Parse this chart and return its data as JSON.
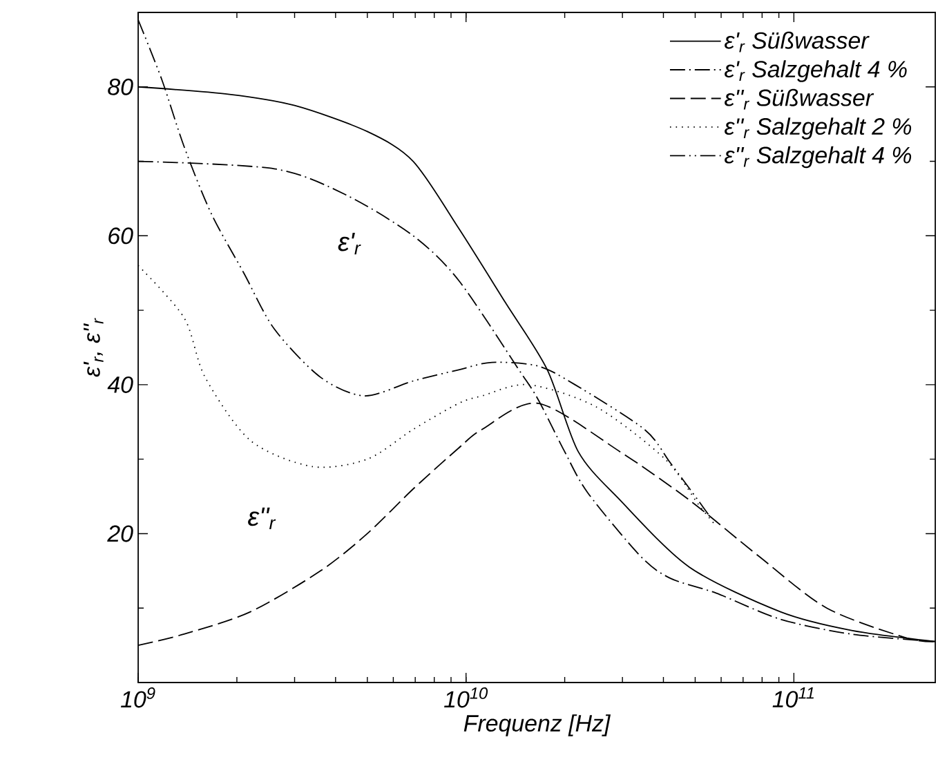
{
  "chart_data": {
    "type": "line",
    "xlabel": "Frequenz [Hz]",
    "ylabel": "ε'$_{r}$, ε''$_{r}$",
    "log": "x",
    "xlim": [
      1000000000.0,
      270000000000.0
    ],
    "xticks": [
      {
        "value": 1000000000.0,
        "label": "10$^{9}$"
      },
      {
        "value": 10000000000.0,
        "label": "10$^{10}$"
      },
      {
        "value": 100000000000.0,
        "label": "10$^{11}$"
      }
    ],
    "ylim": [
      0,
      90
    ],
    "yticks": [
      {
        "value": 10,
        "label": null
      },
      20,
      {
        "value": 30,
        "label": null
      },
      40,
      {
        "value": 50,
        "label": null
      },
      60,
      {
        "value": 70,
        "label": null
      },
      80
    ],
    "legend": "top right",
    "series": [
      {
        "name": "ε'$_{r}$ Süßwasser",
        "color": "#000000",
        "line_style": "solid",
        "x": [
          1000000000.0,
          1900000000.0,
          3000000000.0,
          5000000000.0,
          6900000000.0,
          9500000000.0,
          13200000000.0,
          17700000000.0,
          22000000000.0,
          29500000000.0,
          48000000000.0,
          91000000000.0,
          150000000000.0,
          270000000000.0
        ],
        "values": [
          80,
          79,
          77.5,
          74,
          70,
          61,
          51,
          42,
          31,
          24.5,
          15.5,
          9.5,
          7,
          5.5
        ]
      },
      {
        "name": "ε'$_{r}$ Salzgehalt 4 %",
        "color": "#000000",
        "line_style": "dashdot",
        "x": [
          1000000000.0,
          2600000000.0,
          4300000000.0,
          6900000000.0,
          9500000000.0,
          14500000000.0,
          16600000000.0,
          20000000000.0,
          23500000000.0,
          34000000000.0,
          42000000000.0,
          58000000000.0,
          91000000000.0,
          150000000000.0,
          270000000000.0
        ],
        "values": [
          70,
          69,
          65.5,
          60,
          54,
          42,
          38,
          31,
          25.5,
          17,
          14,
          12,
          8.5,
          6.5,
          5.5
        ]
      },
      {
        "name": "ε''$_{r}$ Süßwasser",
        "color": "#000000",
        "line_style": "dashed",
        "x": [
          1000000000.0,
          1380000000.0,
          2200000000.0,
          3600000000.0,
          5000000000.0,
          6900000000.0,
          9500000000.0,
          11200000000.0,
          16600000000.0,
          29500000000.0,
          48000000000.0,
          78000000000.0,
          126000000000.0,
          220000000000.0,
          270000000000.0
        ],
        "values": [
          5,
          6.5,
          9.5,
          15,
          20,
          26,
          31.5,
          34,
          37.5,
          31,
          24.5,
          17,
          10,
          6,
          5.5
        ]
      },
      {
        "name": "ε''$_{r}$ Salzgehalt 2 %",
        "color": "#000000",
        "line_style": "dotted",
        "x": [
          1000000000.0,
          1380000000.0,
          1600000000.0,
          2200000000.0,
          3400000000.0,
          5000000000.0,
          6900000000.0,
          9500000000.0,
          11200000000.0,
          15500000000.0,
          25000000000.0,
          40500000000.0,
          51000000000.0,
          58000000000.0
        ],
        "values": [
          56,
          49,
          41,
          32.5,
          29,
          30,
          34,
          37.5,
          38.5,
          40,
          37,
          30,
          24,
          21
        ]
      },
      {
        "name": "ε''$_{r}$ Salzgehalt 4 %",
        "color": "#000000",
        "line_style": "dashdotdot",
        "x": [
          1000000000.0,
          1180000000.0,
          1380000000.0,
          1670000000.0,
          2100000000.0,
          2600000000.0,
          3600000000.0,
          4900000000.0,
          6900000000.0,
          9500000000.0,
          12000000000.0,
          16600000000.0,
          21500000000.0,
          35000000000.0,
          42000000000.0,
          51000000000.0,
          55000000000.0
        ],
        "values": [
          89,
          81,
          72,
          63,
          55,
          47.5,
          41,
          38.5,
          40.5,
          42,
          43,
          42.5,
          40,
          34,
          29.5,
          24.5,
          22.5
        ]
      }
    ],
    "annotations": [
      "ε'$_{r}$",
      "ε''$_{r}$"
    ]
  }
}
